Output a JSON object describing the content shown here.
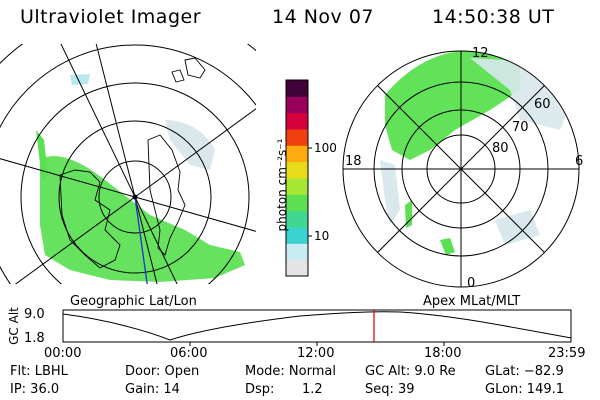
{
  "header": {
    "title": "Ultraviolet Imager",
    "date": "14 Nov 07",
    "time": "14:50:38 UT"
  },
  "geo_panel": {
    "label": "Geographic Lat/Lon"
  },
  "apex_panel": {
    "label": "Apex MLat/MLT",
    "mlt_labels": {
      "top": "12",
      "left": "18",
      "right": "6",
      "bottom": "0"
    },
    "lat_labels": [
      "60",
      "70",
      "80"
    ]
  },
  "colorbar": {
    "unit_label": "photon cm⁻²s⁻¹",
    "ticks": [
      "100",
      "10"
    ],
    "colors": [
      "#e4e4e4",
      "#c8ecf4",
      "#3cd2d2",
      "#40d890",
      "#5ae050",
      "#a6e634",
      "#e8dc1a",
      "#ffaa10",
      "#f04010",
      "#d8003c",
      "#98005a",
      "#400038"
    ]
  },
  "timeline": {
    "y_label": "GC Alt",
    "y_max": "9.0",
    "y_min": "1.8",
    "x_ticks": [
      "00:00",
      "06:00",
      "12:00",
      "18:00",
      "23:59"
    ]
  },
  "info": {
    "filter": "Flt: LBHL",
    "door": "Door: Open",
    "mode": "Mode: Normal",
    "gc_alt": "GC Alt: 9.0 Re",
    "glat": "GLat: −82.9",
    "ip": "IP: 36.0",
    "gain": "Gain: 14",
    "dsp_label": "Dsp:",
    "dsp_value": "1.2",
    "seq": "Seq: 39",
    "glon": "GLon: 149.1"
  }
}
